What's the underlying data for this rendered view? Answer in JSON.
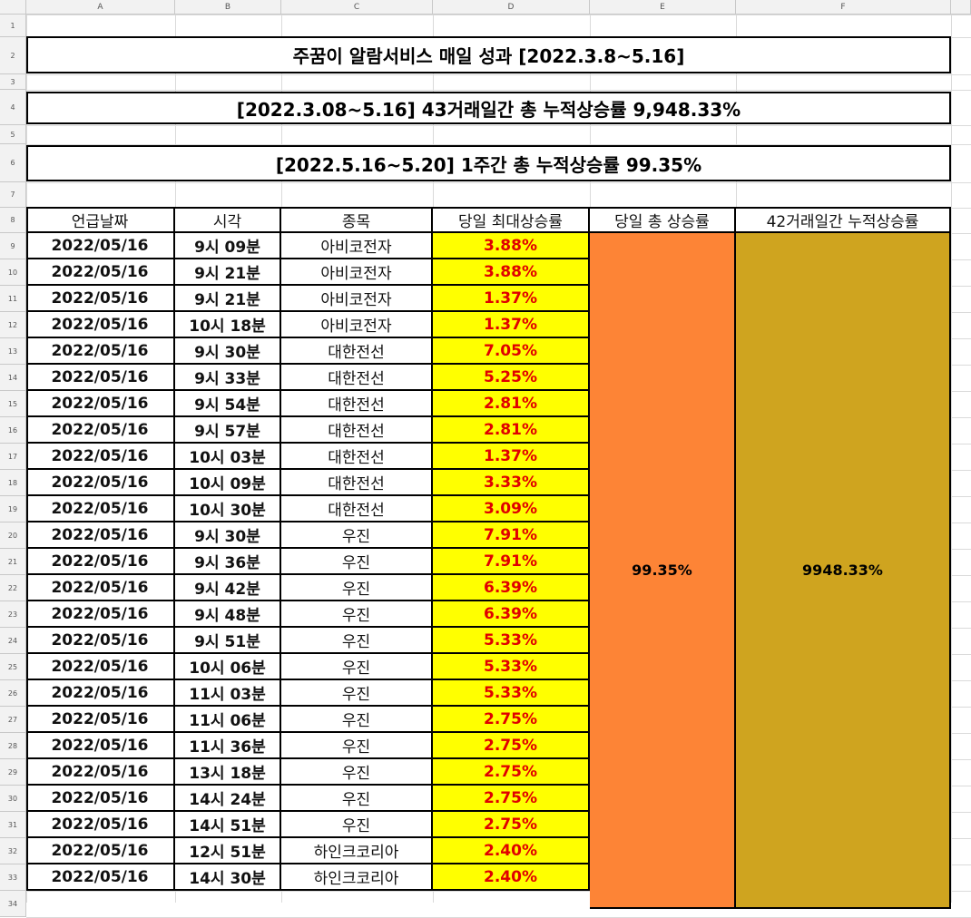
{
  "columns": [
    "A",
    "B",
    "C",
    "D",
    "E",
    "F"
  ],
  "row_numbers": [
    "1",
    "2",
    "3",
    "4",
    "5",
    "6",
    "7",
    "8",
    "9",
    "10",
    "11",
    "12",
    "13",
    "14",
    "15",
    "16",
    "17",
    "18",
    "19",
    "20",
    "21",
    "22",
    "23",
    "24",
    "25",
    "26",
    "27",
    "28",
    "29",
    "30",
    "31",
    "32",
    "33",
    "34"
  ],
  "banners": {
    "title": "주꿈이 알람서비스 매일 성과 [2022.3.8~5.16]",
    "cumulative_43": "[2022.3.08~5.16] 43거래일간 총 누적상승률 9,948.33%",
    "weekly": "[2022.5.16~5.20] 1주간 총 누적상승률 99.35%"
  },
  "table": {
    "headers": [
      "언급날짜",
      "시각",
      "종목",
      "당일 최대상승률",
      "당일 총 상승률",
      "42거래일간 누적상승률"
    ],
    "rows": [
      [
        "2022/05/16",
        "9시 09분",
        "아비코전자",
        "3.88%"
      ],
      [
        "2022/05/16",
        "9시 21분",
        "아비코전자",
        "3.88%"
      ],
      [
        "2022/05/16",
        "9시 21분",
        "아비코전자",
        "1.37%"
      ],
      [
        "2022/05/16",
        "10시 18분",
        "아비코전자",
        "1.37%"
      ],
      [
        "2022/05/16",
        "9시 30분",
        "대한전선",
        "7.05%"
      ],
      [
        "2022/05/16",
        "9시 33분",
        "대한전선",
        "5.25%"
      ],
      [
        "2022/05/16",
        "9시 54분",
        "대한전선",
        "2.81%"
      ],
      [
        "2022/05/16",
        "9시 57분",
        "대한전선",
        "2.81%"
      ],
      [
        "2022/05/16",
        "10시 03분",
        "대한전선",
        "1.37%"
      ],
      [
        "2022/05/16",
        "10시 09분",
        "대한전선",
        "3.33%"
      ],
      [
        "2022/05/16",
        "10시 30분",
        "대한전선",
        "3.09%"
      ],
      [
        "2022/05/16",
        "9시 30분",
        "우진",
        "7.91%"
      ],
      [
        "2022/05/16",
        "9시 36분",
        "우진",
        "7.91%"
      ],
      [
        "2022/05/16",
        "9시 42분",
        "우진",
        "6.39%"
      ],
      [
        "2022/05/16",
        "9시 48분",
        "우진",
        "6.39%"
      ],
      [
        "2022/05/16",
        "9시 51분",
        "우진",
        "5.33%"
      ],
      [
        "2022/05/16",
        "10시 06분",
        "우진",
        "5.33%"
      ],
      [
        "2022/05/16",
        "11시 03분",
        "우진",
        "5.33%"
      ],
      [
        "2022/05/16",
        "11시 06분",
        "우진",
        "2.75%"
      ],
      [
        "2022/05/16",
        "11시 36분",
        "우진",
        "2.75%"
      ],
      [
        "2022/05/16",
        "13시 18분",
        "우진",
        "2.75%"
      ],
      [
        "2022/05/16",
        "14시 24분",
        "우진",
        "2.75%"
      ],
      [
        "2022/05/16",
        "14시 51분",
        "우진",
        "2.75%"
      ],
      [
        "2022/05/16",
        "12시 51분",
        "하인크코리아",
        "2.40%"
      ],
      [
        "2022/05/16",
        "14시 30분",
        "하인크코리아",
        "2.40%"
      ]
    ],
    "daily_total": "99.35%",
    "cumulative_42": "9948.33%"
  },
  "colors": {
    "rate_fill": "#ffff00",
    "rate_text": "#e00000",
    "daily_total_fill": "#fd8436",
    "cumulative_fill": "#cfa41f"
  }
}
